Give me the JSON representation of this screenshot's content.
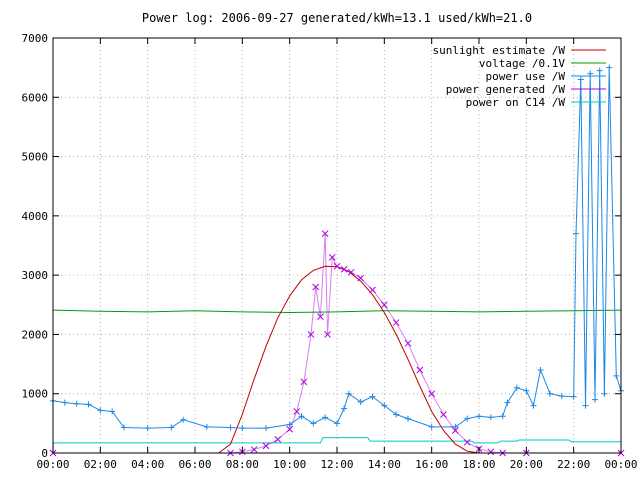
{
  "chart_data": {
    "type": "line",
    "title": "Power log: 2006-09-27 generated/kWh=13.1 used/kWh=21.0",
    "xlabel": "",
    "ylabel": "",
    "xlim": [
      0,
      24
    ],
    "ylim": [
      0,
      7000
    ],
    "x_ticks": [
      "00:00",
      "02:00",
      "04:00",
      "06:00",
      "08:00",
      "10:00",
      "12:00",
      "14:00",
      "16:00",
      "18:00",
      "20:00",
      "22:00",
      "00:00"
    ],
    "y_ticks": [
      "0",
      "1000",
      "2000",
      "3000",
      "4000",
      "5000",
      "6000",
      "7000"
    ],
    "grid": true,
    "legend_position": "top-right",
    "series": [
      {
        "name": "sunlight estimate /W",
        "color": "#c00000",
        "style": "line",
        "x": [
          7.0,
          7.5,
          8.0,
          8.5,
          9.0,
          9.5,
          10.0,
          10.5,
          11.0,
          11.5,
          12.0,
          12.5,
          13.0,
          13.5,
          14.0,
          14.5,
          15.0,
          15.5,
          16.0,
          16.5,
          17.0,
          17.5,
          18.0
        ],
        "y": [
          0,
          150,
          650,
          1250,
          1800,
          2280,
          2650,
          2920,
          3080,
          3150,
          3140,
          3060,
          2900,
          2670,
          2370,
          2000,
          1580,
          1130,
          700,
          380,
          150,
          30,
          0
        ]
      },
      {
        "name": "voltage /0.1V",
        "color": "#00a000",
        "style": "line",
        "x": [
          0,
          2,
          4,
          6,
          8,
          10,
          12,
          14,
          16,
          18,
          20,
          22,
          24
        ],
        "y": [
          2410,
          2390,
          2380,
          2400,
          2380,
          2370,
          2380,
          2400,
          2390,
          2380,
          2390,
          2400,
          2410
        ]
      },
      {
        "name": "power use /W",
        "color": "#1e88e5",
        "style": "linepoints",
        "x": [
          0,
          0.5,
          1.0,
          1.5,
          2.0,
          2.5,
          3.0,
          4.0,
          5.0,
          5.5,
          6.5,
          7.5,
          8.0,
          9.0,
          10.0,
          10.5,
          11.0,
          11.5,
          12.0,
          12.3,
          12.5,
          13.0,
          13.5,
          14.0,
          14.5,
          15.0,
          16.0,
          17.0,
          17.5,
          18.0,
          18.5,
          19.0,
          19.2,
          19.6,
          20.0,
          20.3,
          20.6,
          21.0,
          21.5,
          22.0,
          22.1,
          22.3,
          22.5,
          22.7,
          22.9,
          23.1,
          23.3,
          23.5,
          23.8,
          24.0
        ],
        "y": [
          880,
          850,
          830,
          820,
          720,
          700,
          430,
          420,
          430,
          560,
          440,
          430,
          420,
          420,
          480,
          620,
          500,
          600,
          500,
          750,
          1000,
          860,
          950,
          800,
          650,
          580,
          440,
          440,
          580,
          620,
          600,
          620,
          850,
          1100,
          1050,
          800,
          1400,
          1000,
          960,
          950,
          3700,
          6300,
          800,
          6400,
          900,
          6450,
          1000,
          6500,
          1300,
          1050
        ]
      },
      {
        "name": "power generated /W",
        "color": "#b000e0",
        "style": "points",
        "x": [
          0,
          7.5,
          8.0,
          8.5,
          9.0,
          9.5,
          10.0,
          10.3,
          10.6,
          10.9,
          11.1,
          11.3,
          11.5,
          11.6,
          11.8,
          12.0,
          12.3,
          12.6,
          13.0,
          13.5,
          14.0,
          14.5,
          15.0,
          15.5,
          16.0,
          16.5,
          17.0,
          17.5,
          18.0,
          18.5,
          19.0,
          20.0,
          24.0
        ],
        "y": [
          0,
          0,
          20,
          60,
          120,
          230,
          400,
          700,
          1200,
          2000,
          2800,
          2300,
          3700,
          2000,
          3300,
          3150,
          3100,
          3050,
          2950,
          2750,
          2500,
          2200,
          1850,
          1400,
          1000,
          650,
          380,
          180,
          70,
          20,
          0,
          0,
          0
        ]
      },
      {
        "name": "power on C14 /W",
        "color": "#00c8c8",
        "style": "line",
        "x": [
          0,
          0.01,
          11.3,
          11.4,
          13.3,
          13.4,
          17.7,
          17.8,
          18.8,
          18.9,
          19.6,
          19.7,
          21.8,
          21.9,
          24
        ],
        "y": [
          0,
          170,
          170,
          260,
          260,
          200,
          200,
          170,
          170,
          200,
          200,
          220,
          220,
          190,
          190
        ]
      }
    ]
  }
}
